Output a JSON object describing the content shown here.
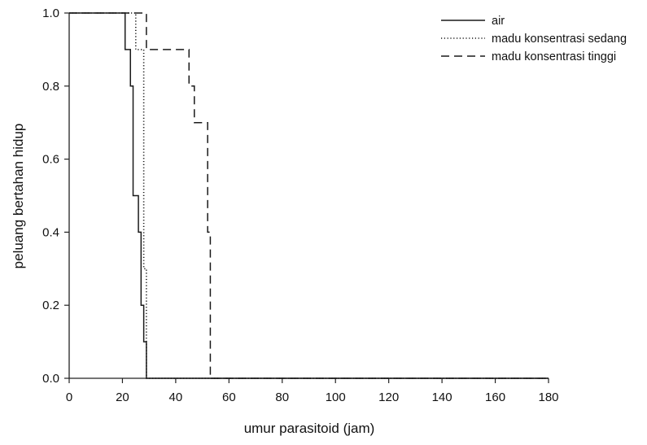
{
  "chart_data": {
    "type": "line",
    "step": true,
    "title": "",
    "xlabel": "umur parasitoid (jam)",
    "ylabel": "peluang bertahan hidup",
    "xlim": [
      0,
      180
    ],
    "ylim": [
      0.0,
      1.0
    ],
    "xticks": [
      0,
      20,
      40,
      60,
      80,
      100,
      120,
      140,
      160,
      180
    ],
    "yticks": [
      0.0,
      0.2,
      0.4,
      0.6,
      0.8,
      1.0
    ],
    "xtick_labels": [
      "0",
      "20",
      "40",
      "60",
      "80",
      "100",
      "120",
      "140",
      "160",
      "180"
    ],
    "ytick_labels": [
      "0.0",
      "0.2",
      "0.4",
      "0.6",
      "0.8",
      "1.0"
    ],
    "grid": false,
    "legend_position": "top-right",
    "series": [
      {
        "name": "air",
        "style": "solid",
        "points": [
          [
            0,
            1.0
          ],
          [
            21,
            1.0
          ],
          [
            21,
            0.9
          ],
          [
            23,
            0.9
          ],
          [
            23,
            0.8
          ],
          [
            24,
            0.8
          ],
          [
            24,
            0.5
          ],
          [
            26,
            0.5
          ],
          [
            26,
            0.4
          ],
          [
            27,
            0.4
          ],
          [
            27,
            0.2
          ],
          [
            28,
            0.2
          ],
          [
            28,
            0.1
          ],
          [
            29,
            0.1
          ],
          [
            29,
            0.0
          ],
          [
            180,
            0.0
          ]
        ]
      },
      {
        "name": "madu konsentrasi sedang",
        "style": "dotted",
        "points": [
          [
            0,
            1.0
          ],
          [
            25,
            1.0
          ],
          [
            25,
            0.9
          ],
          [
            28,
            0.9
          ],
          [
            28,
            0.3
          ],
          [
            29,
            0.3
          ],
          [
            29,
            0.0
          ],
          [
            180,
            0.0
          ]
        ]
      },
      {
        "name": "madu konsentrasi tinggi",
        "style": "dashed",
        "points": [
          [
            0,
            1.0
          ],
          [
            29,
            1.0
          ],
          [
            29,
            0.9
          ],
          [
            45,
            0.9
          ],
          [
            45,
            0.8
          ],
          [
            47,
            0.8
          ],
          [
            47,
            0.7
          ],
          [
            52,
            0.7
          ],
          [
            52,
            0.4
          ],
          [
            53,
            0.4
          ],
          [
            53,
            0.3
          ],
          [
            53,
            0.0
          ],
          [
            180,
            0.0
          ]
        ]
      }
    ]
  }
}
